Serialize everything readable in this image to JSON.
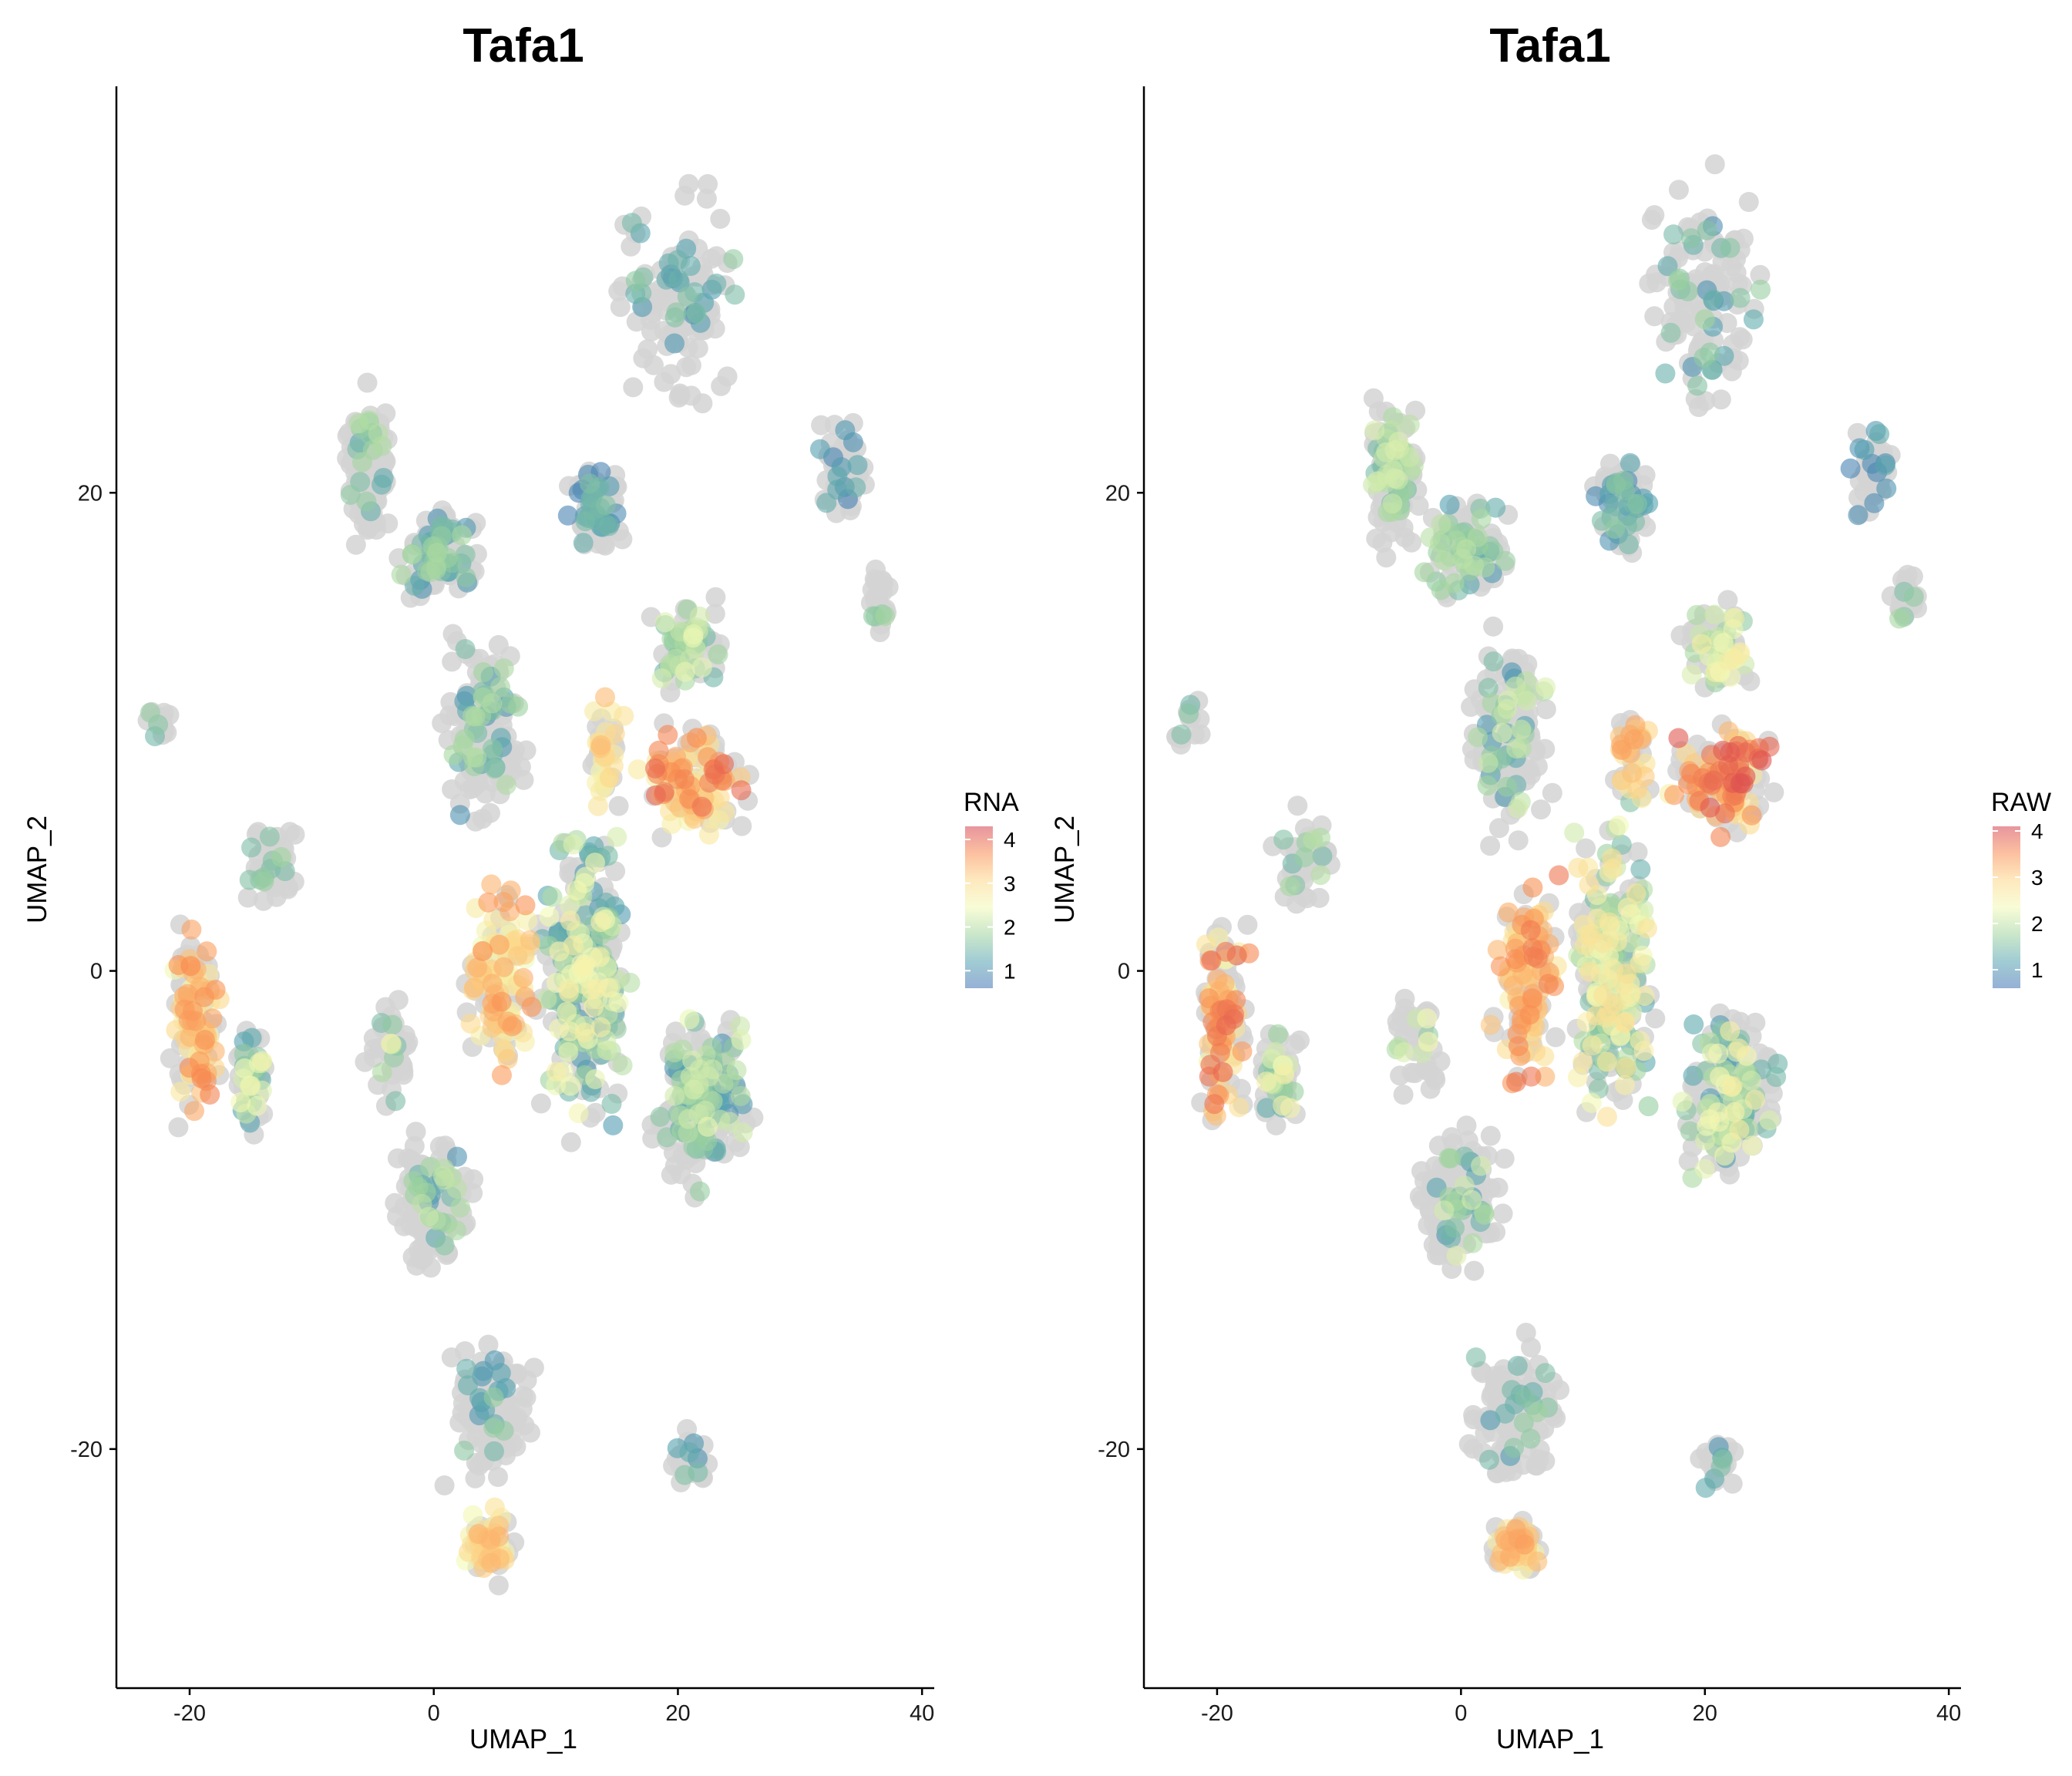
{
  "chart_data": [
    {
      "type": "scatter",
      "title": "Tafa1",
      "xlabel": "UMAP_1",
      "ylabel": "UMAP_2",
      "xlim": [
        -26,
        41
      ],
      "ylim": [
        -30,
        37
      ],
      "xticks": [
        -20,
        0,
        20,
        40
      ],
      "yticks": [
        -20,
        0,
        20
      ],
      "grid": false,
      "legend": {
        "title": "RNA",
        "placement": "right",
        "min": 0.6,
        "max": 4.3,
        "ticks": [
          1,
          2,
          3,
          4
        ]
      },
      "colormap": [
        "#3f6fb3",
        "#55a3b0",
        "#9ed39e",
        "#f3fab6",
        "#fdd688",
        "#f98e52",
        "#d53e4f"
      ],
      "background_color": "#d4d4d4",
      "clusters": [
        {
          "x": [
            -8,
            -3
          ],
          "y": [
            17,
            25
          ],
          "bg": 120,
          "fg": 18,
          "v": [
            1.2,
            2.0
          ]
        },
        {
          "x": [
            -4,
            5
          ],
          "y": [
            15,
            20
          ],
          "bg": 70,
          "fg": 45,
          "v": [
            1.0,
            2.0
          ]
        },
        {
          "x": [
            10,
            16
          ],
          "y": [
            17,
            22
          ],
          "bg": 45,
          "fg": 30,
          "v": [
            0.8,
            1.6
          ]
        },
        {
          "x": [
            14,
            26
          ],
          "y": [
            22,
            34
          ],
          "bg": 90,
          "fg": 30,
          "v": [
            0.9,
            1.8
          ]
        },
        {
          "x": [
            31,
            36
          ],
          "y": [
            18,
            24
          ],
          "bg": 35,
          "fg": 12,
          "v": [
            0.8,
            1.4
          ]
        },
        {
          "x": [
            35,
            38
          ],
          "y": [
            14,
            17
          ],
          "bg": 20,
          "fg": 4,
          "v": [
            1.5,
            2.0
          ]
        },
        {
          "x": [
            -24,
            -21
          ],
          "y": [
            9,
            12
          ],
          "bg": 12,
          "fg": 3,
          "v": [
            1.3,
            1.8
          ]
        },
        {
          "x": [
            -16,
            -10
          ],
          "y": [
            2,
            7
          ],
          "bg": 35,
          "fg": 10,
          "v": [
            1.2,
            2.0
          ]
        },
        {
          "x": [
            -22,
            -17
          ],
          "y": [
            -7,
            3
          ],
          "bg": 70,
          "fg": 75,
          "v": [
            2.4,
            3.8
          ]
        },
        {
          "x": [
            -17,
            -13
          ],
          "y": [
            -7,
            -2
          ],
          "bg": 40,
          "fg": 25,
          "v": [
            1.2,
            2.6
          ]
        },
        {
          "x": [
            -6,
            -1
          ],
          "y": [
            -6,
            0
          ],
          "bg": 35,
          "fg": 8,
          "v": [
            1.4,
            2.6
          ]
        },
        {
          "x": [
            0,
            8
          ],
          "y": [
            5,
            15
          ],
          "bg": 120,
          "fg": 40,
          "v": [
            0.9,
            2.0
          ]
        },
        {
          "x": [
            2,
            9
          ],
          "y": [
            -6,
            5
          ],
          "bg": 50,
          "fg": 90,
          "v": [
            2.4,
            3.7
          ]
        },
        {
          "x": [
            8,
            17
          ],
          "y": [
            -8,
            8
          ],
          "bg": 120,
          "fg": 170,
          "v": [
            1.0,
            2.7
          ]
        },
        {
          "x": [
            12,
            16
          ],
          "y": [
            6,
            12
          ],
          "bg": 20,
          "fg": 25,
          "v": [
            2.5,
            3.4
          ]
        },
        {
          "x": [
            16,
            27
          ],
          "y": [
            5,
            11
          ],
          "bg": 50,
          "fg": 90,
          "v": [
            2.5,
            4.0
          ]
        },
        {
          "x": [
            17,
            25
          ],
          "y": [
            11,
            16
          ],
          "bg": 30,
          "fg": 40,
          "v": [
            1.4,
            2.4
          ]
        },
        {
          "x": [
            17,
            27
          ],
          "y": [
            -10,
            -1
          ],
          "bg": 120,
          "fg": 90,
          "v": [
            0.9,
            2.4
          ]
        },
        {
          "x": [
            -4,
            4
          ],
          "y": [
            -13,
            -6
          ],
          "bg": 130,
          "fg": 28,
          "v": [
            1.0,
            2.2
          ]
        },
        {
          "x": [
            0,
            9
          ],
          "y": [
            -22,
            -15
          ],
          "bg": 110,
          "fg": 18,
          "v": [
            1.0,
            1.8
          ]
        },
        {
          "x": [
            2,
            7
          ],
          "y": [
            -26,
            -22
          ],
          "bg": 30,
          "fg": 40,
          "v": [
            2.4,
            3.4
          ]
        },
        {
          "x": [
            19,
            23
          ],
          "y": [
            -22,
            -19
          ],
          "bg": 20,
          "fg": 6,
          "v": [
            1.0,
            1.6
          ]
        }
      ]
    },
    {
      "type": "scatter",
      "title": "Tafa1",
      "xlabel": "UMAP_1",
      "ylabel": "UMAP_2",
      "xlim": [
        -26,
        41
      ],
      "ylim": [
        -30,
        37
      ],
      "xticks": [
        -20,
        0,
        20,
        40
      ],
      "yticks": [
        -20,
        0,
        20
      ],
      "grid": false,
      "legend": {
        "title": "RAW",
        "placement": "right",
        "min": 0.6,
        "max": 4.1,
        "ticks": [
          1,
          2,
          3,
          4
        ]
      },
      "colormap": [
        "#3f6fb3",
        "#55a3b0",
        "#9ed39e",
        "#f3fab6",
        "#fdd688",
        "#f98e52",
        "#d53e4f"
      ],
      "background_color": "#d4d4d4",
      "clusters": [
        {
          "x": [
            -8,
            -3
          ],
          "y": [
            17,
            25
          ],
          "bg": 110,
          "fg": 45,
          "v": [
            1.4,
            2.2
          ]
        },
        {
          "x": [
            -4,
            5
          ],
          "y": [
            15,
            20
          ],
          "bg": 70,
          "fg": 45,
          "v": [
            1.0,
            2.0
          ]
        },
        {
          "x": [
            10,
            16
          ],
          "y": [
            17,
            22
          ],
          "bg": 45,
          "fg": 30,
          "v": [
            0.9,
            1.7
          ]
        },
        {
          "x": [
            14,
            26
          ],
          "y": [
            22,
            34
          ],
          "bg": 90,
          "fg": 30,
          "v": [
            0.9,
            1.8
          ]
        },
        {
          "x": [
            31,
            36
          ],
          "y": [
            18,
            24
          ],
          "bg": 35,
          "fg": 12,
          "v": [
            0.8,
            1.4
          ]
        },
        {
          "x": [
            35,
            38
          ],
          "y": [
            14,
            17
          ],
          "bg": 20,
          "fg": 4,
          "v": [
            1.5,
            2.0
          ]
        },
        {
          "x": [
            -24,
            -21
          ],
          "y": [
            9,
            12
          ],
          "bg": 12,
          "fg": 3,
          "v": [
            1.3,
            1.8
          ]
        },
        {
          "x": [
            -16,
            -10
          ],
          "y": [
            2,
            7
          ],
          "bg": 35,
          "fg": 10,
          "v": [
            1.2,
            2.0
          ]
        },
        {
          "x": [
            -22,
            -17
          ],
          "y": [
            -7,
            3
          ],
          "bg": 70,
          "fg": 75,
          "v": [
            2.4,
            3.8
          ]
        },
        {
          "x": [
            -17,
            -13
          ],
          "y": [
            -7,
            -2
          ],
          "bg": 40,
          "fg": 25,
          "v": [
            1.2,
            2.6
          ]
        },
        {
          "x": [
            -6,
            -1
          ],
          "y": [
            -6,
            0
          ],
          "bg": 35,
          "fg": 8,
          "v": [
            1.4,
            2.6
          ]
        },
        {
          "x": [
            0,
            8
          ],
          "y": [
            5,
            15
          ],
          "bg": 120,
          "fg": 40,
          "v": [
            1.0,
            2.2
          ]
        },
        {
          "x": [
            2,
            9
          ],
          "y": [
            -6,
            5
          ],
          "bg": 50,
          "fg": 90,
          "v": [
            2.4,
            3.7
          ]
        },
        {
          "x": [
            8,
            17
          ],
          "y": [
            -8,
            8
          ],
          "bg": 120,
          "fg": 170,
          "v": [
            1.2,
            2.8
          ]
        },
        {
          "x": [
            12,
            16
          ],
          "y": [
            6,
            12
          ],
          "bg": 20,
          "fg": 25,
          "v": [
            2.5,
            3.4
          ]
        },
        {
          "x": [
            16,
            27
          ],
          "y": [
            5,
            11
          ],
          "bg": 50,
          "fg": 90,
          "v": [
            2.5,
            4.0
          ]
        },
        {
          "x": [
            17,
            25
          ],
          "y": [
            11,
            16
          ],
          "bg": 30,
          "fg": 40,
          "v": [
            1.6,
            2.6
          ]
        },
        {
          "x": [
            17,
            27
          ],
          "y": [
            -10,
            -1
          ],
          "bg": 120,
          "fg": 90,
          "v": [
            1.0,
            2.6
          ]
        },
        {
          "x": [
            -4,
            4
          ],
          "y": [
            -13,
            -6
          ],
          "bg": 130,
          "fg": 28,
          "v": [
            1.0,
            2.2
          ]
        },
        {
          "x": [
            0,
            9
          ],
          "y": [
            -22,
            -15
          ],
          "bg": 110,
          "fg": 18,
          "v": [
            1.0,
            1.8
          ]
        },
        {
          "x": [
            2,
            7
          ],
          "y": [
            -26,
            -22
          ],
          "bg": 30,
          "fg": 40,
          "v": [
            2.4,
            3.4
          ]
        },
        {
          "x": [
            19,
            23
          ],
          "y": [
            -22,
            -19
          ],
          "bg": 20,
          "fg": 6,
          "v": [
            1.0,
            1.6
          ]
        }
      ]
    }
  ]
}
